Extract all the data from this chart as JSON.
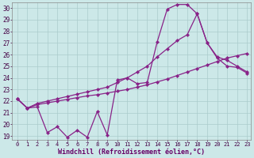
{
  "xlabel": "Windchill (Refroidissement éolien,°C)",
  "bg_color": "#cce8e8",
  "grid_color": "#aacccc",
  "line_color": "#882288",
  "xlim_min": -0.5,
  "xlim_max": 23.4,
  "ylim_min": 18.65,
  "ylim_max": 30.45,
  "xticks": [
    0,
    1,
    2,
    3,
    4,
    5,
    6,
    7,
    8,
    9,
    10,
    11,
    12,
    13,
    14,
    15,
    16,
    17,
    18,
    19,
    20,
    21,
    22,
    23
  ],
  "yticks": [
    19,
    20,
    21,
    22,
    23,
    24,
    25,
    26,
    27,
    28,
    29,
    30
  ],
  "series": [
    [
      22.2,
      21.4,
      21.5,
      19.3,
      19.8,
      18.9,
      19.5,
      18.9,
      21.1,
      19.1,
      23.8,
      24.0,
      23.5,
      23.6,
      27.1,
      29.9,
      30.3,
      30.3,
      29.5,
      27.0,
      25.7,
      25.0,
      24.9,
      24.4
    ],
    [
      22.2,
      21.4,
      21.8,
      22.0,
      22.2,
      22.4,
      22.6,
      22.8,
      23.0,
      23.2,
      23.6,
      24.0,
      24.5,
      25.0,
      25.8,
      26.5,
      27.2,
      27.7,
      29.5,
      27.0,
      25.8,
      25.5,
      25.0,
      24.5
    ],
    [
      22.2,
      21.4,
      21.7,
      21.85,
      22.0,
      22.15,
      22.3,
      22.45,
      22.55,
      22.7,
      22.85,
      23.0,
      23.2,
      23.4,
      23.65,
      23.9,
      24.2,
      24.5,
      24.8,
      25.1,
      25.4,
      25.7,
      25.9,
      26.1
    ]
  ]
}
